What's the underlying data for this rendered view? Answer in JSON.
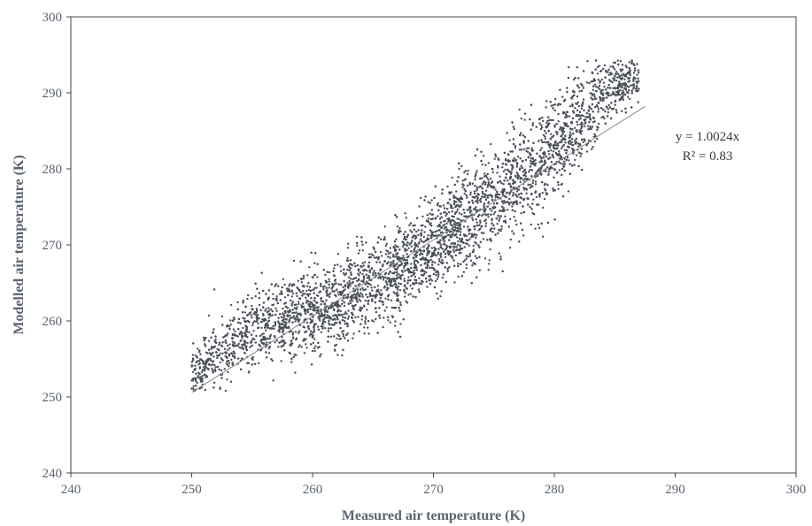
{
  "chart_data": {
    "type": "scatter",
    "title": "",
    "xlabel": "Measured air temperature (K)",
    "ylabel": "Modelled air temperature (K)",
    "xlim": [
      240,
      300
    ],
    "ylim": [
      240,
      300
    ],
    "xticks": [
      "240",
      "250",
      "260",
      "270",
      "280",
      "290",
      "300"
    ],
    "yticks": [
      "240",
      "250",
      "260",
      "270",
      "280",
      "290",
      "300"
    ],
    "grid": false,
    "legend": "none",
    "colors": {
      "points": "#4a4f58",
      "trendline": "#8a8a8a",
      "axis": "#444444"
    },
    "trendline": {
      "equation": "y = 1.0024x",
      "r_squared": "R² = 0.83",
      "x": [
        250,
        287.5
      ],
      "y": [
        250.6,
        288.2
      ]
    },
    "point_cloud": {
      "note_count": 0,
      "ridge_x": [
        250,
        252,
        255,
        258,
        261,
        264,
        267,
        270,
        273,
        276,
        279,
        282,
        284,
        286
      ],
      "ridge_y": [
        253.5,
        255.5,
        258.5,
        260.5,
        262.0,
        264.0,
        266.5,
        270.0,
        273.5,
        277.0,
        281.0,
        286.0,
        289.5,
        292.0
      ],
      "spread_y": [
        2.0,
        2.6,
        3.0,
        3.2,
        3.4,
        3.5,
        3.6,
        3.8,
        4.0,
        4.2,
        4.4,
        3.8,
        3.0,
        2.0
      ]
    }
  }
}
